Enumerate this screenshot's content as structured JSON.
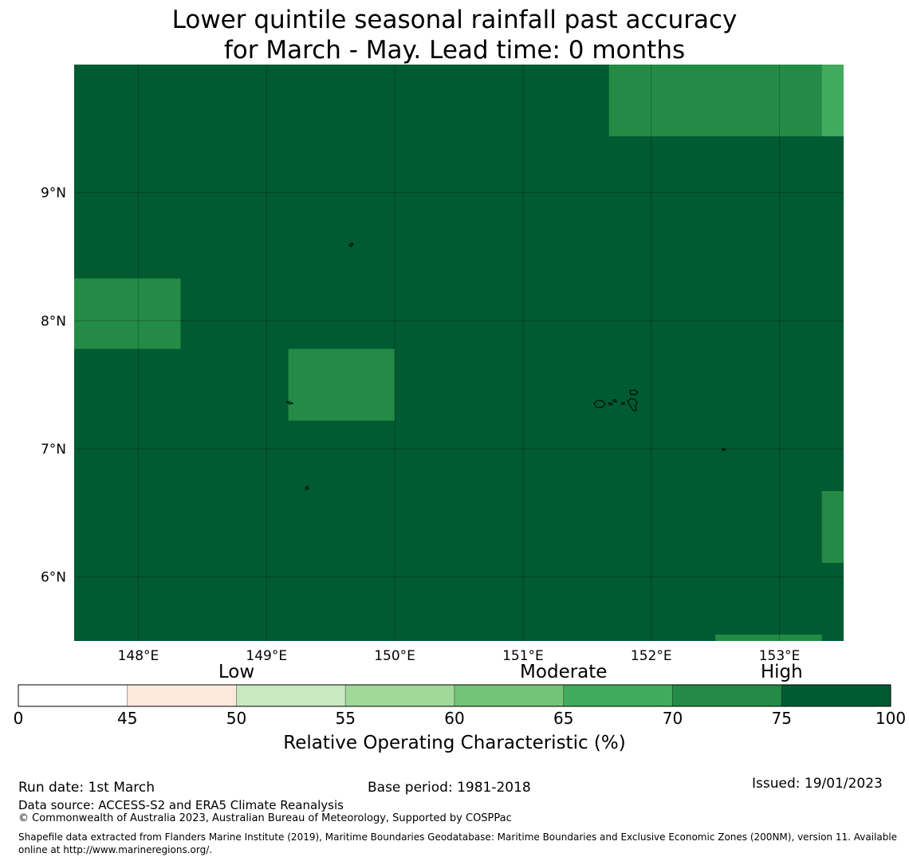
{
  "title": {
    "line1": "Lower quintile seasonal rainfall past accuracy",
    "line2": "for March - May. Lead time: 0 months"
  },
  "map": {
    "lat_ticks": [
      "9°N",
      "8°N",
      "7°N",
      "6°N"
    ],
    "lon_ticks": [
      "148°E",
      "149°E",
      "150°E",
      "151°E",
      "152°E",
      "153°E"
    ],
    "lon_range": [
      147.5,
      153.5
    ],
    "lat_range": [
      5.5,
      10.0
    ],
    "background_value": "75-100",
    "grid_cells": [
      {
        "lon": [
          151.67,
          153.33
        ],
        "lat": [
          9.44,
          10.0
        ],
        "value": "70-75"
      },
      {
        "lon": [
          153.33,
          153.5
        ],
        "lat": [
          9.44,
          10.0
        ],
        "value": "65-70"
      },
      {
        "lon": [
          147.5,
          148.33
        ],
        "lat": [
          7.78,
          8.33
        ],
        "value": "70-75"
      },
      {
        "lon": [
          149.17,
          150.0
        ],
        "lat": [
          7.22,
          7.78
        ],
        "value": "70-75"
      },
      {
        "lon": [
          153.33,
          153.5
        ],
        "lat": [
          6.11,
          6.67
        ],
        "value": "70-75"
      },
      {
        "lon": [
          152.5,
          153.33
        ],
        "lat": [
          5.5,
          5.55
        ],
        "value": "70-75"
      }
    ]
  },
  "colorbar": {
    "categories": [
      {
        "label": "Low",
        "position": 50
      },
      {
        "label": "Moderate",
        "position": 65
      },
      {
        "label": "High",
        "position": 75
      }
    ],
    "tick_labels": [
      "0",
      "45",
      "50",
      "55",
      "60",
      "65",
      "70",
      "75",
      "100"
    ],
    "colors": [
      "#ffffff",
      "#fee8de",
      "#c8e9c1",
      "#a1d99b",
      "#73c476",
      "#41ab5d",
      "#238b45",
      "#005a32"
    ],
    "title": "Relative Operating Characteristic (%)"
  },
  "colors": {
    "75-100": "#005a32",
    "70-75": "#238b45",
    "65-70": "#41ab5d"
  },
  "footer": {
    "run_date": "Run date: 1st March",
    "base_period": "Base period: 1981-2018",
    "issued": "Issued: 19/01/2023",
    "data_source": "Data source: ACCESS-S2 and ERA5 Climate Reanalysis",
    "copyright": "© Commonwealth of Australia 2023, Australian Bureau of Meteorology, Supported by COSPPac",
    "shapefile_note": "Shapefile data extracted from Flanders Marine Institute (2019), Maritime Boundaries Geodatabase: Maritime Boundaries and Exclusive Economic Zones (200NM), version 11. Available online at http://www.marineregions.org/."
  }
}
